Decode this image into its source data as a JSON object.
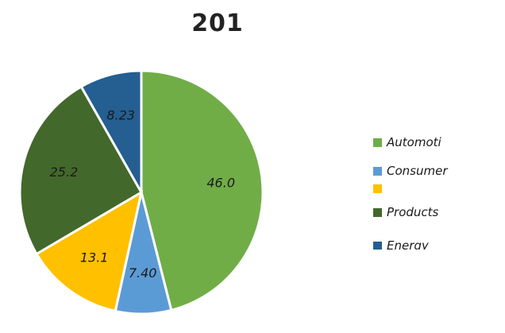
{
  "chart_data": {
    "type": "pie",
    "title": "201",
    "slices": [
      {
        "label": "Automoti",
        "value": 46.0,
        "display": "46.0",
        "color": "#70AD47"
      },
      {
        "label": "Consumer",
        "value": 7.4,
        "display": "7.40",
        "color": "#5B9BD5"
      },
      {
        "label": "",
        "value": 13.1,
        "display": "13.1",
        "color": "#FFC000"
      },
      {
        "label": "Products",
        "value": 25.2,
        "display": "25.2",
        "color": "#43682B"
      },
      {
        "label": "Energy",
        "value": 8.23,
        "display": "8.23",
        "color": "#255E91"
      }
    ],
    "legend_position": "right"
  }
}
